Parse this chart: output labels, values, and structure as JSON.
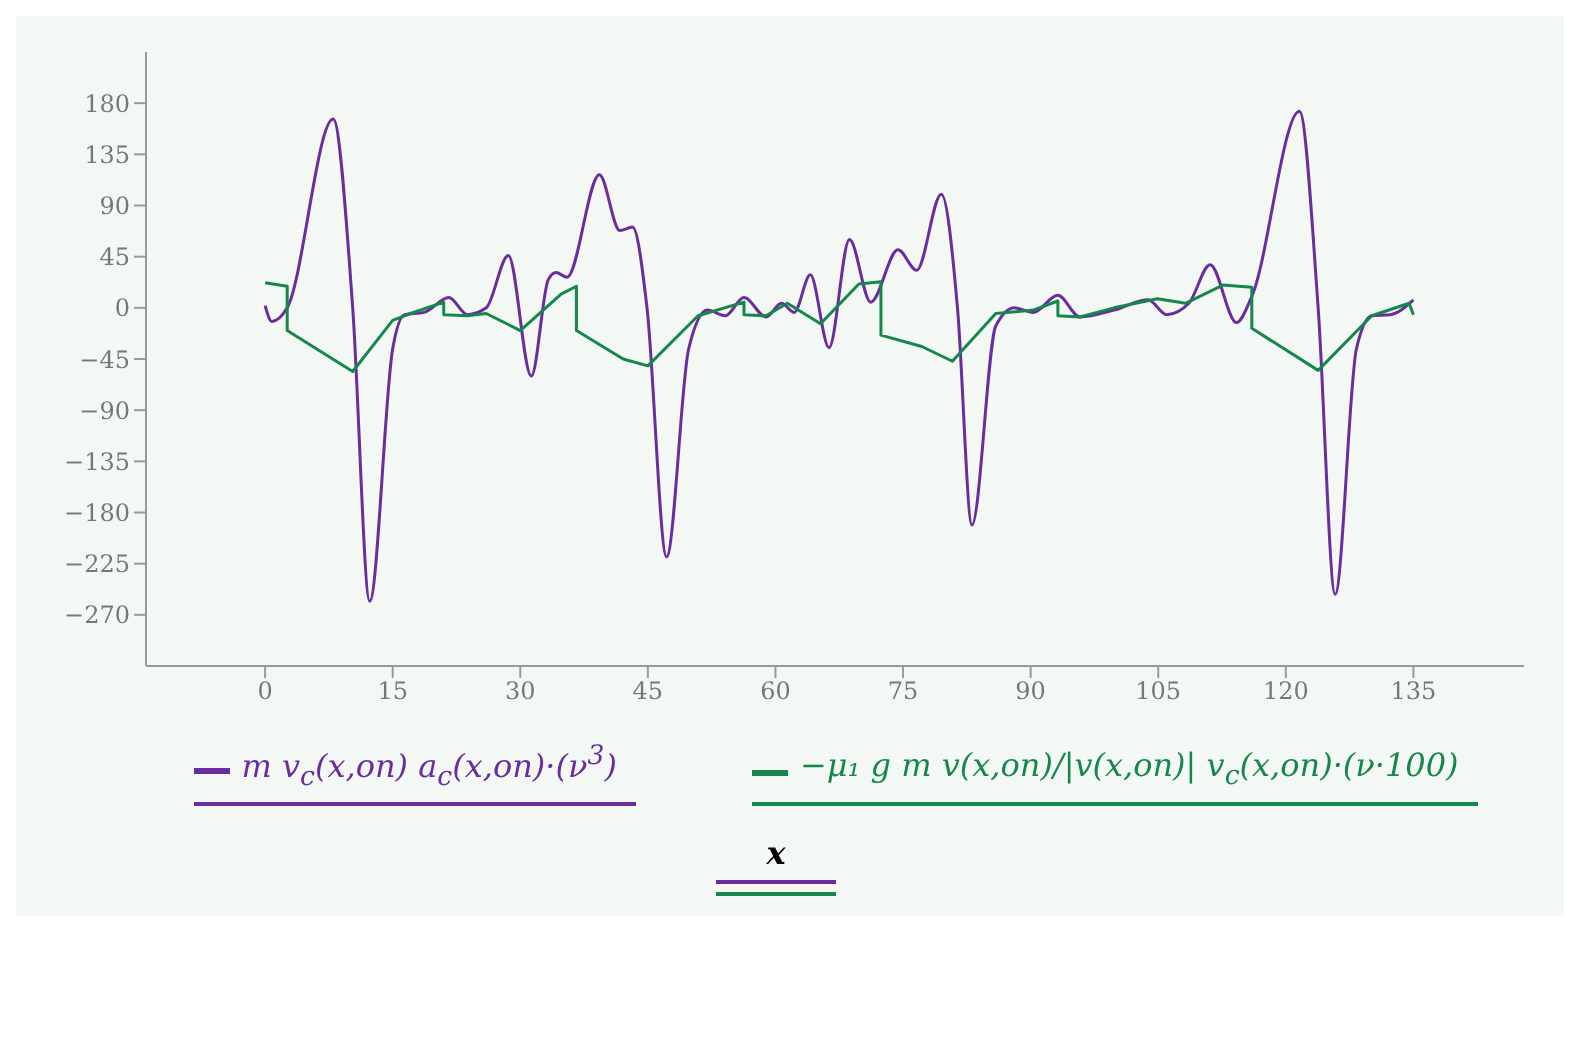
{
  "chart_data": {
    "type": "line",
    "xlabel": "x",
    "legend": "bottom",
    "grid": false,
    "marker": "none",
    "line_style": "solid",
    "xlim": [
      -14,
      148
    ],
    "xticks": [
      0,
      15,
      30,
      45,
      60,
      75,
      90,
      105,
      120,
      135
    ],
    "ylim": [
      -315,
      225
    ],
    "yticks": [
      -270,
      -225,
      -180,
      -135,
      -90,
      -45,
      0,
      45,
      90,
      135,
      180
    ],
    "series": [
      {
        "name": "m v$_{c}$(x,on) a$_{c}$(x,on)·(ν$^{3}$)",
        "color": "#6a2c9e",
        "x": [
          0,
          0.8,
          2.6,
          8.0,
          10.3,
          12.3,
          15.0,
          16.4,
          18.7,
          21.6,
          23.8,
          26.0,
          28.6,
          31.3,
          33.3,
          34.2,
          35.5,
          39.3,
          41.7,
          43.2,
          44.9,
          47.2,
          49.8,
          52.0,
          54.1,
          56.3,
          58.9,
          60.7,
          62.2,
          64.1,
          66.3,
          68.7,
          71.2,
          74.4,
          76.6,
          79.5,
          81.4,
          83.1,
          85.9,
          88.1,
          90.3,
          93.2,
          95.8,
          99.8,
          103.8,
          106.0,
          108.6,
          111.1,
          114.2,
          116.0,
          121.6,
          123.8,
          125.8,
          128.3,
          130.1,
          132.3,
          135
        ],
        "values": [
          2,
          -12,
          0,
          166,
          0,
          -258,
          -36,
          -6,
          -4,
          9,
          -6,
          0,
          46,
          -60,
          25,
          31,
          27,
          117,
          68,
          71,
          0,
          -219,
          -36,
          -2,
          -7,
          9,
          -8,
          4,
          -4,
          29,
          -35,
          60,
          5,
          51,
          33,
          100,
          0,
          -191,
          -16,
          0,
          -4,
          11,
          -8,
          -2,
          7,
          -6,
          4,
          38,
          -13,
          10,
          173,
          0,
          -252,
          -36,
          -7,
          -6,
          7
        ]
      },
      {
        "name": "−μ₁ g m v(x,on)/|v(x,on)| v$_{c}$(x,on)·(ν·100)",
        "color": "#16874a",
        "x": [
          0,
          2.6,
          2.6,
          10.3,
          15.0,
          17.1,
          21.0,
          21.0,
          23.8,
          26.0,
          30.0,
          34.8,
          36.6,
          36.6,
          42.1,
          45.0,
          50.9,
          56.3,
          56.3,
          58.9,
          61.4,
          65.3,
          69.8,
          72.4,
          72.4,
          77.2,
          80.8,
          85.9,
          90.3,
          93.2,
          93.2,
          95.8,
          99.8,
          104.9,
          108.2,
          112.6,
          116.0,
          116.0,
          123.8,
          130.1,
          134.5,
          135
        ],
        "values": [
          22,
          19,
          -20,
          -56,
          -11,
          -5,
          5,
          -6,
          -7,
          -5,
          -20,
          12,
          19,
          -20,
          -45,
          -51,
          -7,
          5,
          -6,
          -7,
          4,
          -14,
          21,
          23,
          -24,
          -34,
          -47,
          -5,
          -2,
          6,
          -7,
          -8,
          0,
          8,
          4,
          20,
          18,
          -18,
          -55,
          -7,
          4,
          -6
        ]
      }
    ]
  }
}
